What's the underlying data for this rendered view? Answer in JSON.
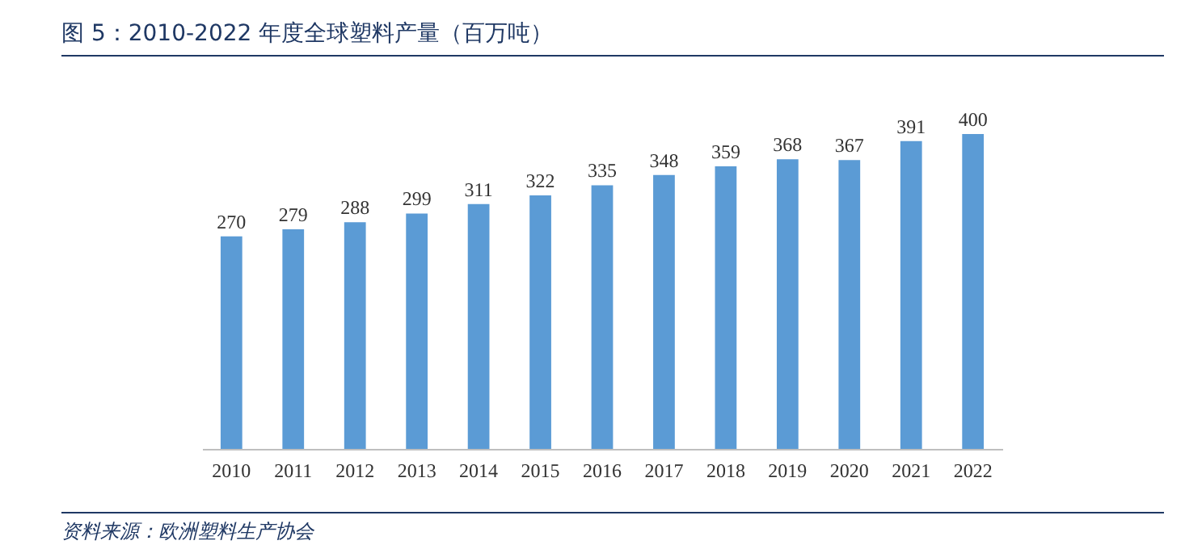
{
  "chart_data": {
    "type": "bar",
    "title": "图 5：2010-2022 年度全球塑料产量（百万吨）",
    "categories": [
      "2010",
      "2011",
      "2012",
      "2013",
      "2014",
      "2015",
      "2016",
      "2017",
      "2018",
      "2019",
      "2020",
      "2021",
      "2022"
    ],
    "values": [
      270,
      279,
      288,
      299,
      311,
      322,
      335,
      348,
      359,
      368,
      367,
      391,
      400
    ],
    "color": "#5b9bd5",
    "data_labels": true,
    "annotations": [
      "资料来源：欧洲塑料生产协会"
    ]
  }
}
